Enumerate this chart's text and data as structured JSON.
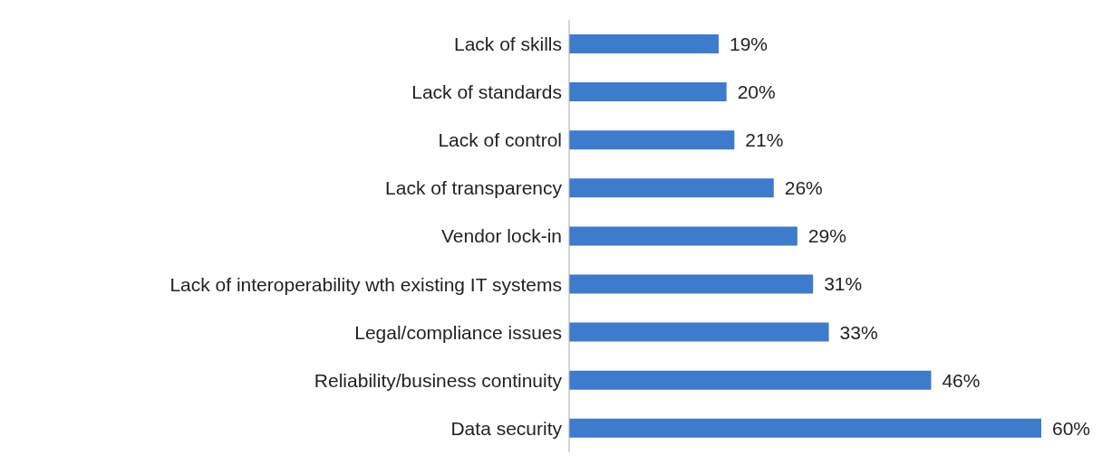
{
  "chart_data": {
    "type": "bar",
    "orientation": "horizontal",
    "categories": [
      "Lack of skills",
      "Lack of standards",
      "Lack of control",
      "Lack of transparency",
      "Vendor lock-in",
      "Lack of interoperability wth existing IT systems",
      "Legal/compliance issues",
      "Reliability/business continuity",
      "Data security"
    ],
    "values": [
      19,
      20,
      21,
      26,
      29,
      31,
      33,
      46,
      60
    ],
    "value_labels": [
      "19%",
      "20%",
      "21%",
      "26%",
      "29%",
      "31%",
      "33%",
      "46%",
      "60%"
    ],
    "color": "#3d7bcc"
  }
}
